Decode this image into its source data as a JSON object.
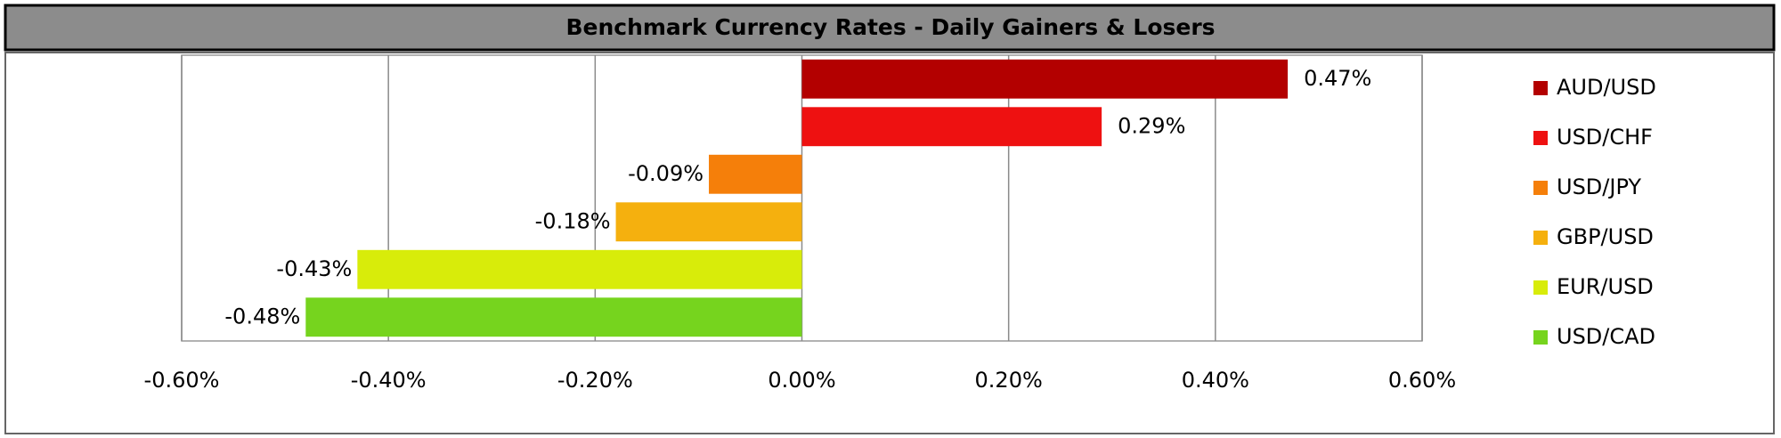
{
  "chart_data": {
    "type": "hbar",
    "title": "Benchmark Currency Rates - Daily Gainers & Losers",
    "categories": [
      "AUD/USD",
      "USD/CHF",
      "USD/JPY",
      "GBP/USD",
      "EUR/USD",
      "USD/CAD"
    ],
    "values": [
      0.47,
      0.29,
      -0.09,
      -0.18,
      -0.43,
      -0.48
    ],
    "value_labels": [
      "0.47%",
      "0.29%",
      "-0.09%",
      "-0.18%",
      "-0.43%",
      "-0.48%"
    ],
    "colors": [
      "#b30000",
      "#ee1111",
      "#f57f0a",
      "#f5b00e",
      "#d8ec0a",
      "#76d41e"
    ],
    "xlim": [
      -0.6,
      0.6
    ],
    "xticks": [
      {
        "value": -0.6,
        "label": "-0.60%"
      },
      {
        "value": -0.4,
        "label": "-0.40%"
      },
      {
        "value": -0.2,
        "label": "-0.20%"
      },
      {
        "value": 0,
        "label": "0.00%"
      },
      {
        "value": 0.2,
        "label": "0.20%"
      },
      {
        "value": 0.4,
        "label": "0.40%"
      },
      {
        "value": 0.6,
        "label": "0.60%"
      }
    ],
    "grid": true,
    "legend": "right"
  }
}
